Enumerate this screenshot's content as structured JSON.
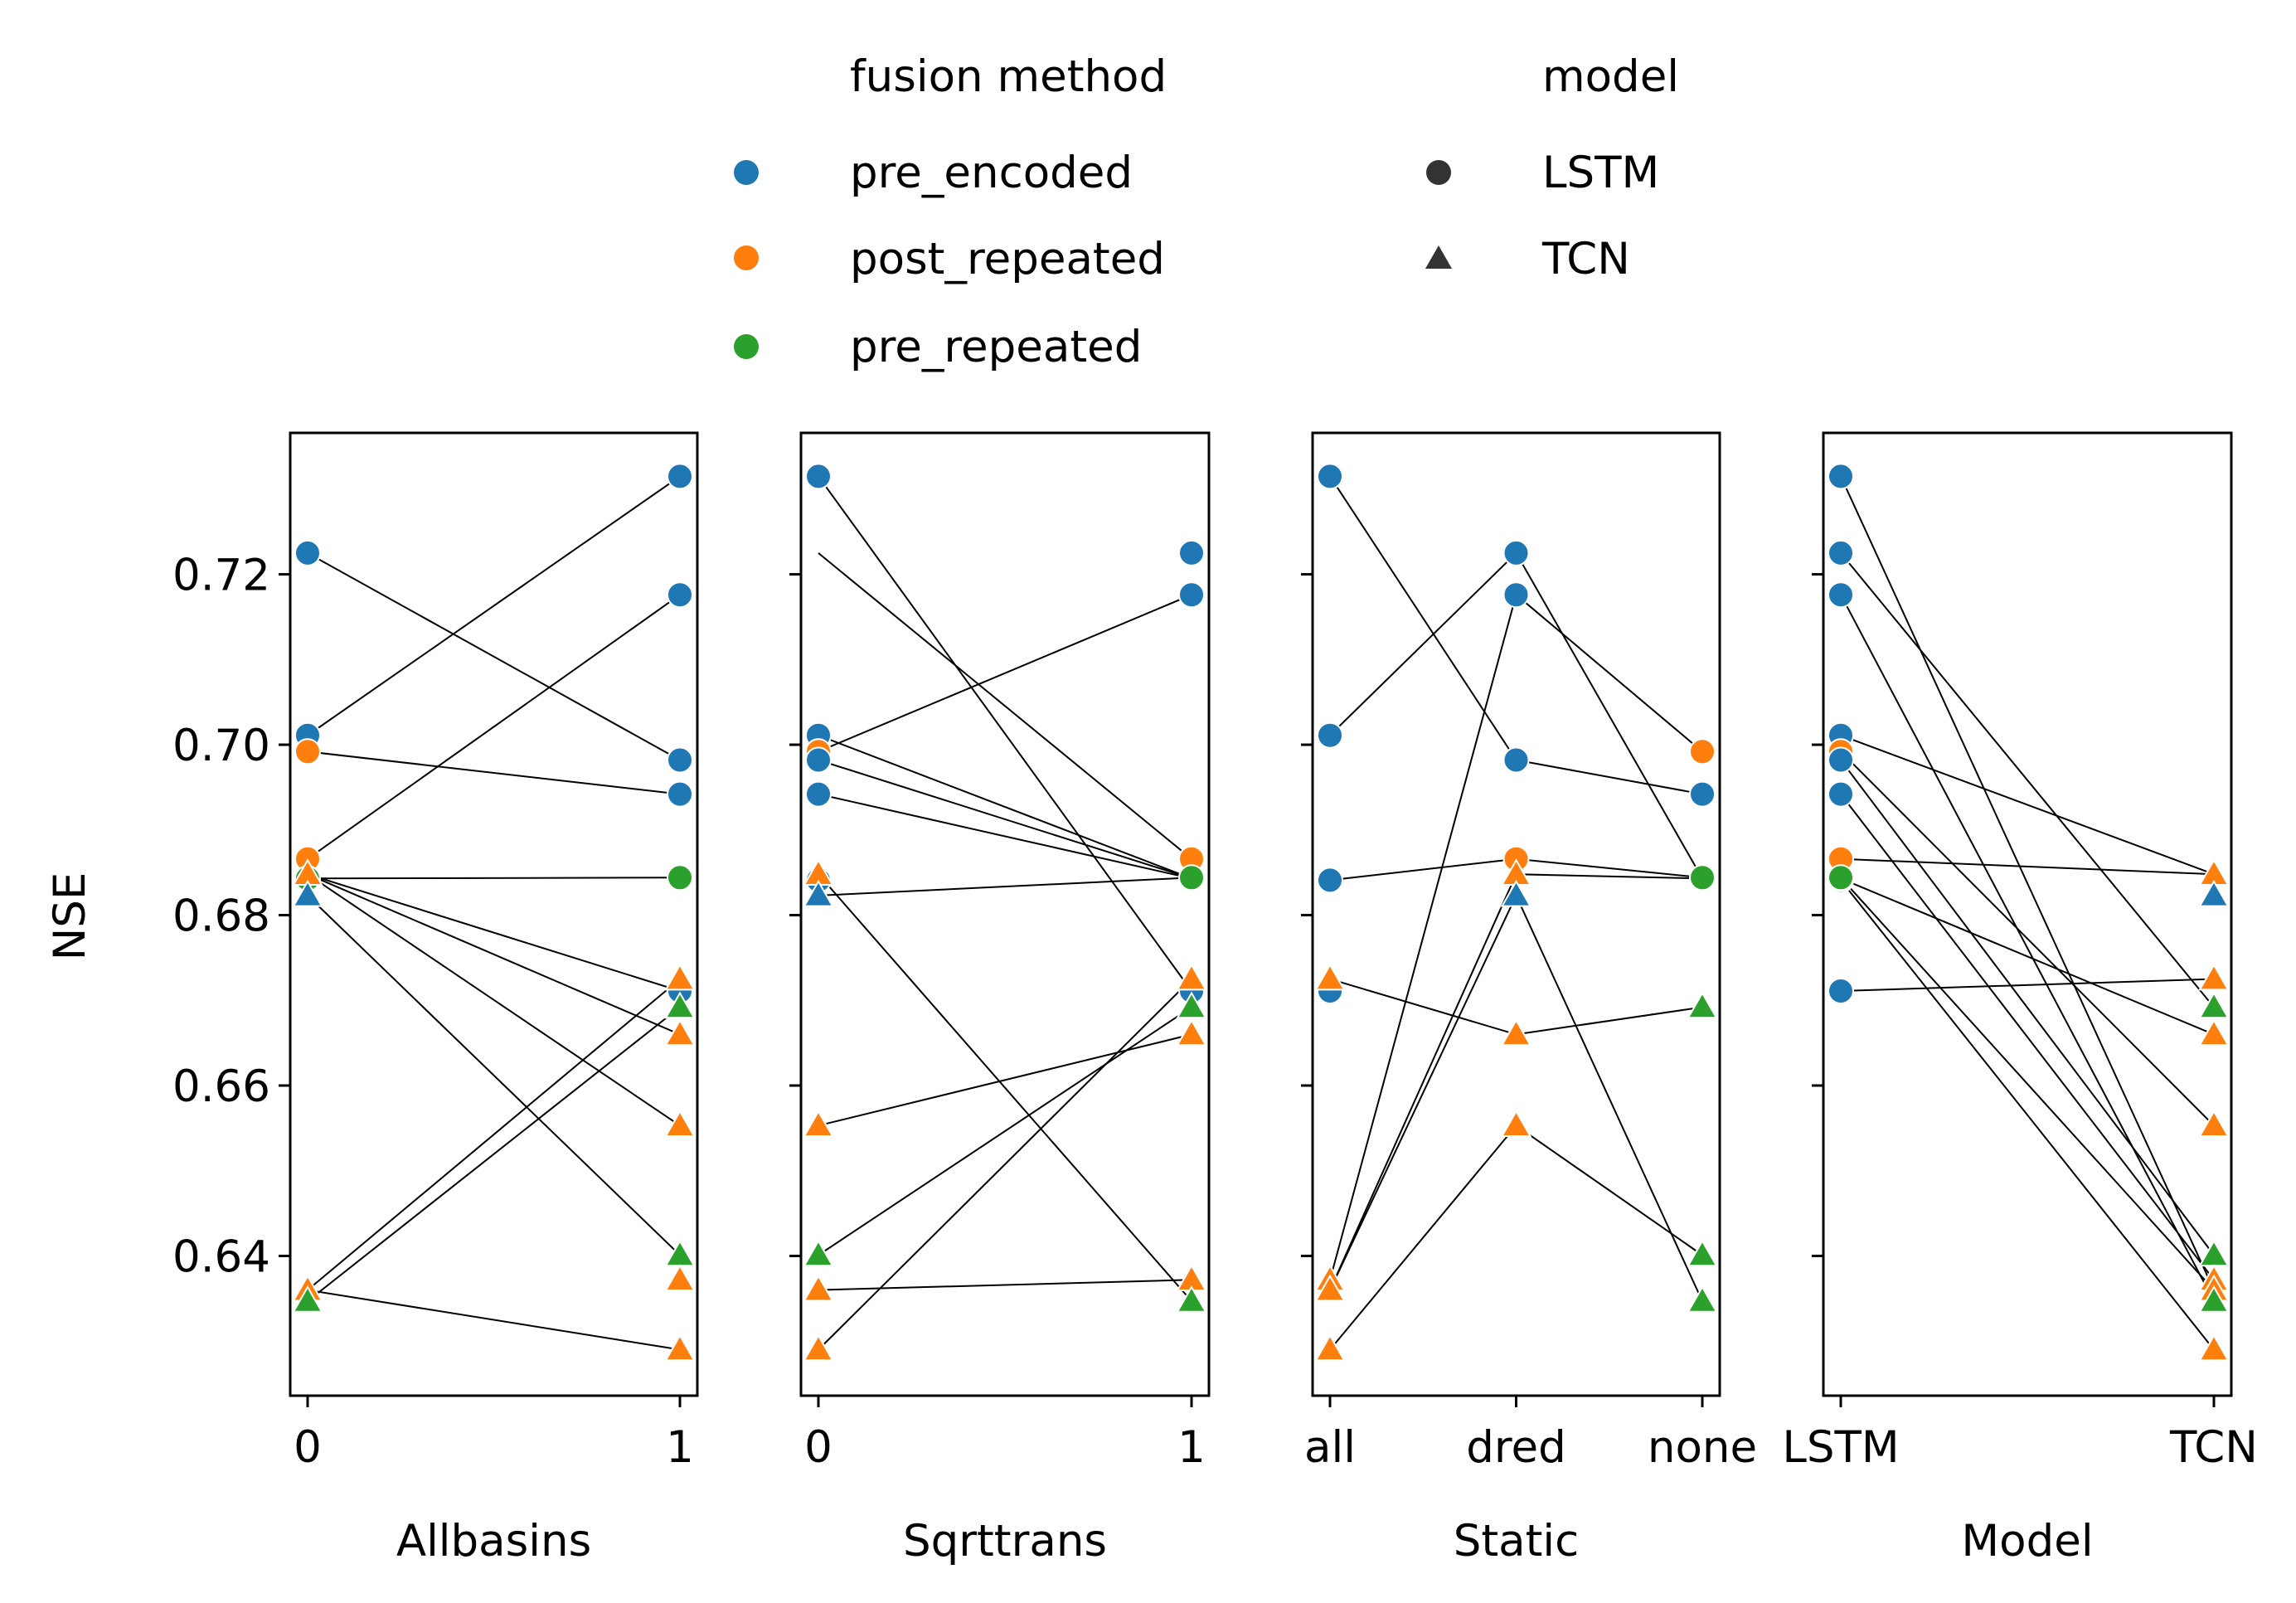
{
  "legend": {
    "hue_title": "fusion method",
    "style_title": "model",
    "hue_entries": [
      {
        "label": "pre_encoded",
        "color": "#1f77b4"
      },
      {
        "label": "post_repeated",
        "color": "#ff7f0e"
      },
      {
        "label": "pre_repeated",
        "color": "#2ca02c"
      }
    ],
    "style_entries": [
      {
        "label": "LSTM",
        "marker": "circle"
      },
      {
        "label": "TCN",
        "marker": "triangle"
      }
    ]
  },
  "chart_data": {
    "type": "scatter",
    "ylabel": "NSE",
    "ylim": [
      0.6236,
      0.7366
    ],
    "yticks": [
      0.64,
      0.66,
      0.68,
      0.7,
      0.72
    ],
    "ytick_labels": [
      "0.64",
      "0.66",
      "0.68",
      "0.70",
      "0.72"
    ],
    "colors": {
      "pre_encoded": "#1f77b4",
      "post_repeated": "#ff7f0e",
      "pre_repeated": "#2ca02c"
    },
    "legend_placement": "top-center",
    "runs": [
      {
        "allbasins": 0,
        "sqrttrans": 1,
        "static": "dred",
        "model": "LSTM",
        "fusion": "pre_encoded",
        "nse": 0.7225
      },
      {
        "allbasins": 1,
        "sqrttrans": 0,
        "static": "all",
        "model": "LSTM",
        "fusion": "pre_encoded",
        "nse": 0.7315
      },
      {
        "allbasins": 0,
        "sqrttrans": 0,
        "static": "all",
        "model": "LSTM",
        "fusion": "pre_encoded",
        "nse": 0.7011
      },
      {
        "allbasins": 1,
        "sqrttrans": 1,
        "static": "dred",
        "model": "LSTM",
        "fusion": "pre_encoded",
        "nse": 0.7176
      },
      {
        "allbasins": 0,
        "sqrttrans": 0,
        "static": "none",
        "model": "LSTM",
        "fusion": "post_repeated",
        "nse": 0.6992
      },
      {
        "allbasins": 1,
        "sqrttrans": 0,
        "static": "dred",
        "model": "LSTM",
        "fusion": "pre_encoded",
        "nse": 0.6982
      },
      {
        "allbasins": 0,
        "sqrttrans": 1,
        "static": "dred",
        "model": "LSTM",
        "fusion": "post_repeated",
        "nse": 0.6866
      },
      {
        "allbasins": 1,
        "sqrttrans": 0,
        "static": "none",
        "model": "LSTM",
        "fusion": "pre_encoded",
        "nse": 0.6942
      },
      {
        "allbasins": 0,
        "sqrttrans": 0,
        "static": "all",
        "model": "LSTM",
        "fusion": "pre_encoded",
        "nse": 0.6841
      },
      {
        "allbasins": 1,
        "sqrttrans": 1,
        "static": "all",
        "model": "LSTM",
        "fusion": "pre_encoded",
        "nse": 0.6711
      },
      {
        "allbasins": 0,
        "sqrttrans": 1,
        "static": "none",
        "model": "LSTM",
        "fusion": "pre_repeated",
        "nse": 0.6843
      },
      {
        "allbasins": 1,
        "sqrttrans": 1,
        "static": "none",
        "model": "LSTM",
        "fusion": "pre_repeated",
        "nse": 0.6844
      },
      {
        "allbasins": 0,
        "sqrttrans": 0,
        "static": "dred",
        "model": "TCN",
        "fusion": "post_repeated",
        "nse": 0.6848
      },
      {
        "allbasins": 0,
        "sqrttrans": 0,
        "static": "dred",
        "model": "TCN",
        "fusion": "pre_encoded",
        "nse": 0.6823
      },
      {
        "allbasins": 1,
        "sqrttrans": 1,
        "static": "all",
        "model": "TCN",
        "fusion": "post_repeated",
        "nse": 0.6725
      },
      {
        "allbasins": 1,
        "sqrttrans": 1,
        "static": "none",
        "model": "TCN",
        "fusion": "pre_repeated",
        "nse": 0.6692
      },
      {
        "allbasins": 1,
        "sqrttrans": 1,
        "static": "dred",
        "model": "TCN",
        "fusion": "post_repeated",
        "nse": 0.666
      },
      {
        "allbasins": 1,
        "sqrttrans": 0,
        "static": "dred",
        "model": "TCN",
        "fusion": "post_repeated",
        "nse": 0.6553
      },
      {
        "allbasins": 1,
        "sqrttrans": 0,
        "static": "none",
        "model": "TCN",
        "fusion": "pre_repeated",
        "nse": 0.6401
      },
      {
        "allbasins": 1,
        "sqrttrans": 1,
        "static": "all",
        "model": "TCN",
        "fusion": "post_repeated",
        "nse": 0.6372
      },
      {
        "allbasins": 0,
        "sqrttrans": 0,
        "static": "all",
        "model": "TCN",
        "fusion": "post_repeated",
        "nse": 0.636
      },
      {
        "allbasins": 0,
        "sqrttrans": 1,
        "static": "none",
        "model": "TCN",
        "fusion": "pre_repeated",
        "nse": 0.6347
      },
      {
        "allbasins": 1,
        "sqrttrans": 0,
        "static": "all",
        "model": "TCN",
        "fusion": "post_repeated",
        "nse": 0.629
      }
    ],
    "panels": [
      {
        "xlabel": "Allbasins",
        "key": "allbasins",
        "categories": [
          0,
          1
        ],
        "tick_labels": [
          "0",
          "1"
        ],
        "lines": [
          [
            0.7225,
            0.6982
          ],
          [
            0.7011,
            0.7315
          ],
          [
            0.6992,
            0.6942
          ],
          [
            0.6866,
            0.7176
          ],
          [
            0.6843,
            0.6844
          ],
          [
            0.6848,
            0.6711
          ],
          [
            0.6848,
            0.666
          ],
          [
            0.6848,
            0.6553
          ],
          [
            0.6823,
            0.6401
          ],
          [
            0.636,
            0.6725
          ],
          [
            0.6347,
            0.6692
          ],
          [
            0.636,
            0.629
          ]
        ]
      },
      {
        "xlabel": "Sqrttrans",
        "key": "sqrttrans",
        "categories": [
          0,
          1
        ],
        "tick_labels": [
          "0",
          "1"
        ],
        "lines": [
          [
            0.7315,
            0.6711
          ],
          [
            0.7225,
            0.6866
          ],
          [
            0.7011,
            0.6843
          ],
          [
            0.6992,
            0.7176
          ],
          [
            0.6982,
            0.6843
          ],
          [
            0.6942,
            0.6843
          ],
          [
            0.6823,
            0.6844
          ],
          [
            0.6848,
            0.6347
          ],
          [
            0.6553,
            0.666
          ],
          [
            0.6401,
            0.6692
          ],
          [
            0.636,
            0.6372
          ],
          [
            0.629,
            0.6725
          ]
        ]
      },
      {
        "xlabel": "Static",
        "key": "static",
        "categories": [
          "all",
          "dred",
          "none"
        ],
        "tick_labels": [
          "all",
          "dred",
          "none"
        ],
        "lines": [
          [
            0.7315,
            0.6982,
            0.6942
          ],
          [
            0.7011,
            0.7225,
            0.6843
          ],
          [
            0.6841,
            0.6866,
            0.6844
          ],
          [
            0.6725,
            0.666,
            0.6692
          ],
          [
            0.6372,
            0.7176,
            0.6992
          ],
          [
            0.636,
            0.6823,
            0.6347
          ],
          [
            0.629,
            0.6553,
            0.6401
          ],
          [
            0.636,
            0.6848,
            0.6843
          ]
        ]
      },
      {
        "xlabel": "Model",
        "key": "model",
        "categories": [
          "LSTM",
          "TCN"
        ],
        "tick_labels": [
          "LSTM",
          "TCN"
        ],
        "lines": [
          [
            0.7315,
            0.636
          ],
          [
            0.7225,
            0.6692
          ],
          [
            0.7176,
            0.6347
          ],
          [
            0.7011,
            0.6848
          ],
          [
            0.6992,
            0.6553
          ],
          [
            0.6982,
            0.6401
          ],
          [
            0.6942,
            0.6372
          ],
          [
            0.6866,
            0.6848
          ],
          [
            0.6843,
            0.666
          ],
          [
            0.6841,
            0.629
          ],
          [
            0.6844,
            0.636
          ],
          [
            0.6711,
            0.6725
          ]
        ]
      }
    ]
  }
}
